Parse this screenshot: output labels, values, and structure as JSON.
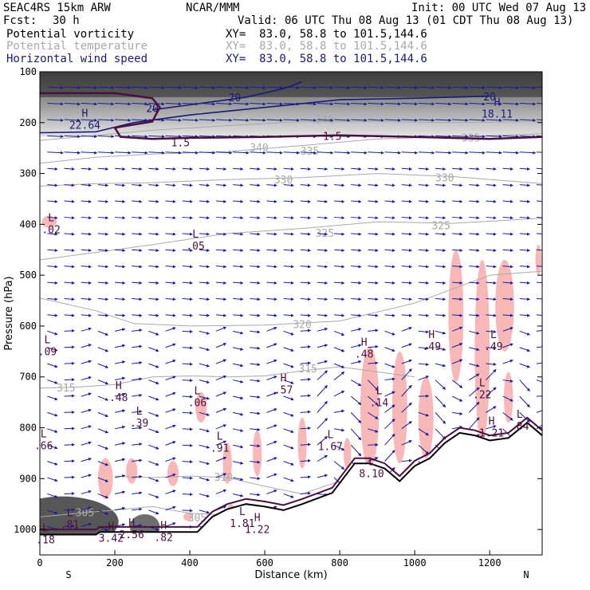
{
  "header": {
    "title": "SEAC4RS 15km ARW",
    "center": "NCAR/MMM",
    "init": "Init: 00 UTC Wed 07 Aug 13",
    "fcst_label": "Fcst:",
    "fcst_value": "30 h",
    "valid": "Valid: 06 UTC Thu 08 Aug 13 (01 CDT Thu 08 Aug 13)"
  },
  "fields": [
    {
      "name": "Potential vorticity",
      "xy": "XY=  83.0, 58.8 to 101.5,144.6",
      "color": "#000000"
    },
    {
      "name": "Potential temperature",
      "xy": "XY=  83.0, 58.8 to 101.5,144.6",
      "color": "#a9a9a9"
    },
    {
      "name": "Horizontal wind speed",
      "xy": "XY=  83.0, 58.8 to 101.5,144.6",
      "color": "#1a1a7a"
    }
  ],
  "colors": {
    "theta_contour": "#a9a9a9",
    "wind_contour": "#1a1a7a",
    "pv_contour": "#4a1040",
    "vectors": "#1a1a9a",
    "pink_shading": "#f8b8b8",
    "terrain": "#000000"
  },
  "chart_data": {
    "type": "cross-section",
    "ylabel": "Pressure (hPa)",
    "xlabel": "Distance (km)",
    "x_ticks": [
      0,
      200,
      400,
      600,
      800,
      1000,
      1200
    ],
    "y_ticks": [
      100,
      200,
      300,
      400,
      500,
      600,
      700,
      800,
      900,
      1000
    ],
    "x_range": [
      0,
      1340
    ],
    "y_range": [
      100,
      1050
    ],
    "y_scale": "linear",
    "endpoint_left": "S",
    "endpoint_right": "N",
    "theta_contours": [
      {
        "label": "340",
        "points": [
          [
            0,
            235
          ],
          [
            150,
            225
          ],
          [
            300,
            215
          ],
          [
            500,
            206
          ],
          [
            700,
            198
          ],
          [
            900,
            198
          ],
          [
            1100,
            200
          ],
          [
            1340,
            198
          ]
        ],
        "label_at": [
          [
            585,
            250
          ],
          [
            760,
            195
          ]
        ]
      },
      {
        "label": "335",
        "points": [
          [
            0,
            280
          ],
          [
            150,
            268
          ],
          [
            300,
            262
          ],
          [
            500,
            257
          ],
          [
            700,
            245
          ],
          [
            900,
            232
          ],
          [
            1100,
            228
          ],
          [
            1340,
            222
          ]
        ],
        "label_at": [
          [
            720,
            257
          ],
          [
            1150,
            231
          ]
        ]
      },
      {
        "label": "330",
        "points": [
          [
            0,
            325
          ],
          [
            150,
            320
          ],
          [
            300,
            318
          ],
          [
            500,
            312
          ],
          [
            700,
            308
          ],
          [
            900,
            300
          ],
          [
            1100,
            306
          ],
          [
            1340,
            320
          ]
        ],
        "label_at": [
          [
            650,
            313
          ],
          [
            1080,
            309
          ]
        ]
      },
      {
        "label": "325",
        "points": [
          [
            0,
            470
          ],
          [
            150,
            455
          ],
          [
            300,
            440
          ],
          [
            500,
            418
          ],
          [
            700,
            408
          ],
          [
            900,
            395
          ],
          [
            1100,
            398
          ],
          [
            1340,
            388
          ]
        ],
        "label_at": [
          [
            760,
            418
          ],
          [
            1070,
            403
          ]
        ]
      },
      {
        "label": "320",
        "points": [
          [
            0,
            545
          ],
          [
            150,
            570
          ],
          [
            250,
            595
          ],
          [
            400,
            600
          ],
          [
            600,
            598
          ],
          [
            800,
            590
          ],
          [
            1000,
            555
          ],
          [
            1200,
            500
          ],
          [
            1340,
            492
          ]
        ],
        "label_at": [
          [
            700,
            598
          ]
        ]
      },
      {
        "label": "315",
        "points": [
          [
            0,
            722
          ],
          [
            100,
            720
          ],
          [
            200,
            715
          ],
          [
            300,
            700
          ],
          [
            400,
            698
          ],
          [
            500,
            700
          ],
          [
            600,
            698
          ],
          [
            700,
            688
          ],
          [
            800,
            680
          ],
          [
            900,
            690
          ],
          [
            1000,
            700
          ]
        ],
        "label_at": [
          [
            70,
            722
          ],
          [
            715,
            685
          ]
        ]
      },
      {
        "label": "310",
        "points": [
          [
            200,
            895
          ],
          [
            300,
            898
          ],
          [
            400,
            895
          ],
          [
            500,
            898
          ],
          [
            600,
            915
          ],
          [
            700,
            930
          ],
          [
            800,
            905
          ]
        ],
        "label_at": [
          [
            490,
            898
          ]
        ]
      },
      {
        "label": "305",
        "points": [
          [
            0,
            975
          ],
          [
            150,
            965
          ],
          [
            300,
            955
          ],
          [
            400,
            968
          ],
          [
            500,
            972
          ],
          [
            600,
            960
          ]
        ],
        "label_at": [
          [
            120,
            968
          ],
          [
            420,
            978
          ]
        ]
      }
    ],
    "wind_speed_contours": [
      {
        "label": "20",
        "points": [
          [
            0,
            220
          ],
          [
            150,
            218
          ],
          [
            250,
            200
          ],
          [
            400,
            185
          ],
          [
            600,
            170
          ],
          [
            800,
            155
          ],
          [
            1000,
            152
          ],
          [
            1200,
            148
          ]
        ],
        "label_at": [
          [
            300,
            173
          ],
          [
            1200,
            150
          ]
        ]
      },
      {
        "label": "20",
        "points": [
          [
            300,
            175
          ],
          [
            400,
            165
          ],
          [
            550,
            150
          ],
          [
            650,
            133
          ],
          [
            700,
            120
          ]
        ],
        "label_at": [
          [
            520,
            152
          ]
        ]
      }
    ],
    "wind_maxima": [
      {
        "type": "H",
        "value": "22.64",
        "x": 120,
        "p": 195
      },
      {
        "type": "H",
        "value": "18.11",
        "x": 1220,
        "p": 173
      }
    ],
    "pv_contours": [
      {
        "label": "1.5",
        "points": [
          [
            0,
            142
          ],
          [
            200,
            142
          ],
          [
            300,
            152
          ],
          [
            320,
            170
          ],
          [
            300,
            198
          ],
          [
            200,
            210
          ],
          [
            215,
            228
          ],
          [
            300,
            232
          ],
          [
            400,
            230
          ],
          [
            600,
            228
          ],
          [
            800,
            225
          ],
          [
            1000,
            228
          ],
          [
            1200,
            232
          ],
          [
            1340,
            228
          ]
        ],
        "label_at": [
          [
            375,
            240
          ],
          [
            780,
            228
          ]
        ]
      }
    ],
    "pv_extrema": [
      {
        "type": "L",
        "value": ".02",
        "x": 30,
        "p": 400
      },
      {
        "type": "L",
        "value": ".05",
        "x": 415,
        "p": 432
      },
      {
        "type": "L",
        "value": ".09",
        "x": 20,
        "p": 640
      },
      {
        "type": "H",
        "value": ".48",
        "x": 210,
        "p": 730
      },
      {
        "type": "L",
        "value": ".39",
        "x": 265,
        "p": 780
      },
      {
        "type": "L",
        "value": ".06",
        "x": 420,
        "p": 740
      },
      {
        "type": "L",
        "value": ".91",
        "x": 480,
        "p": 830
      },
      {
        "type": "H",
        "value": ".57",
        "x": 650,
        "p": 715
      },
      {
        "type": "L",
        "value": "1.67",
        "x": 775,
        "p": 827
      },
      {
        "type": "H",
        "value": ".48",
        "x": 865,
        "p": 645
      },
      {
        "type": "L",
        "value": ".14",
        "x": 905,
        "p": 740
      },
      {
        "type": "H",
        "value": ".49",
        "x": 1045,
        "p": 630
      },
      {
        "type": "L",
        "value": ".49",
        "x": 1210,
        "p": 630
      },
      {
        "type": "L",
        "value": ".22",
        "x": 1180,
        "p": 725
      },
      {
        "type": "H",
        "value": "1.21",
        "x": 1205,
        "p": 800
      },
      {
        "type": "L",
        "value": ".84",
        "x": 1280,
        "p": 787
      },
      {
        "type": "L",
        "value": ".66",
        "x": 10,
        "p": 825
      },
      {
        "type": "L",
        "value": ".81",
        "x": 80,
        "p": 980
      },
      {
        "type": "L",
        "value": ".18",
        "x": 15,
        "p": 1010
      },
      {
        "type": "H",
        "value": "3.42",
        "x": 190,
        "p": 1007
      },
      {
        "type": "H",
        "value": "2.56",
        "x": 245,
        "p": 1000
      },
      {
        "type": "H",
        "value": ".82",
        "x": 330,
        "p": 1005
      },
      {
        "type": "L",
        "value": "1.81",
        "x": 540,
        "p": 978
      },
      {
        "type": "H",
        "value": "1.22",
        "x": 580,
        "p": 990
      },
      {
        "type": "L",
        "value": "8.10",
        "x": 885,
        "p": 880
      }
    ],
    "terrain": [
      [
        0,
        1010
      ],
      [
        150,
        1010
      ],
      [
        160,
        1005
      ],
      [
        300,
        1005
      ],
      [
        360,
        1005
      ],
      [
        420,
        1005
      ],
      [
        460,
        975
      ],
      [
        500,
        960
      ],
      [
        550,
        950
      ],
      [
        600,
        955
      ],
      [
        650,
        962
      ],
      [
        700,
        950
      ],
      [
        780,
        928
      ],
      [
        840,
        870
      ],
      [
        880,
        870
      ],
      [
        920,
        880
      ],
      [
        960,
        905
      ],
      [
        1000,
        875
      ],
      [
        1040,
        860
      ],
      [
        1080,
        830
      ],
      [
        1120,
        810
      ],
      [
        1160,
        815
      ],
      [
        1200,
        825
      ],
      [
        1250,
        820
      ],
      [
        1300,
        790
      ],
      [
        1340,
        815
      ]
    ],
    "pv_shaded_regions": "stratosphere above ~230 hPa (gray); surface lows near 0-150 km and 250-300 km (dark gray)",
    "pink_regions": "scattered near-zero/negative PV patches in mid troposphere 400-1300 km"
  }
}
